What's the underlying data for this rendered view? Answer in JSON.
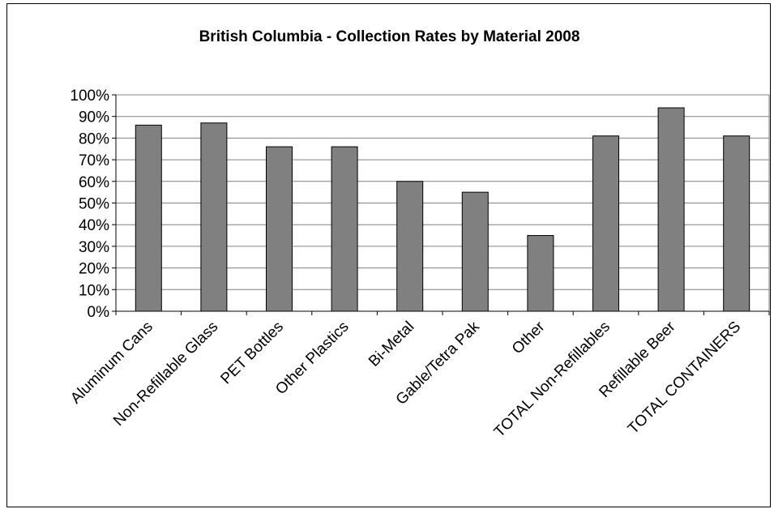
{
  "chart_data": {
    "type": "bar",
    "title": "British Columbia - Collection Rates by Material 2008",
    "xlabel": "",
    "ylabel": "",
    "categories": [
      "Aluminum Cans",
      "Non-Refillable Glass",
      "PET Bottles",
      "Other Plastics",
      "Bi-Metal",
      "Gable/Tetra Pak",
      "Other",
      "TOTAL Non-Refillables",
      "Refillable Beer",
      "TOTAL CONTAINERS"
    ],
    "values": [
      86,
      87,
      76,
      76,
      60,
      55,
      35,
      81,
      94,
      81
    ],
    "ylim": [
      0,
      100
    ],
    "yticks": [
      "0%",
      "10%",
      "20%",
      "30%",
      "40%",
      "50%",
      "60%",
      "70%",
      "80%",
      "90%",
      "100%"
    ],
    "grid": true,
    "legend": "none",
    "colors": {
      "bar": "#808080",
      "bar_edge": "#000000",
      "grid": "#808080",
      "axis": "#000000"
    }
  }
}
